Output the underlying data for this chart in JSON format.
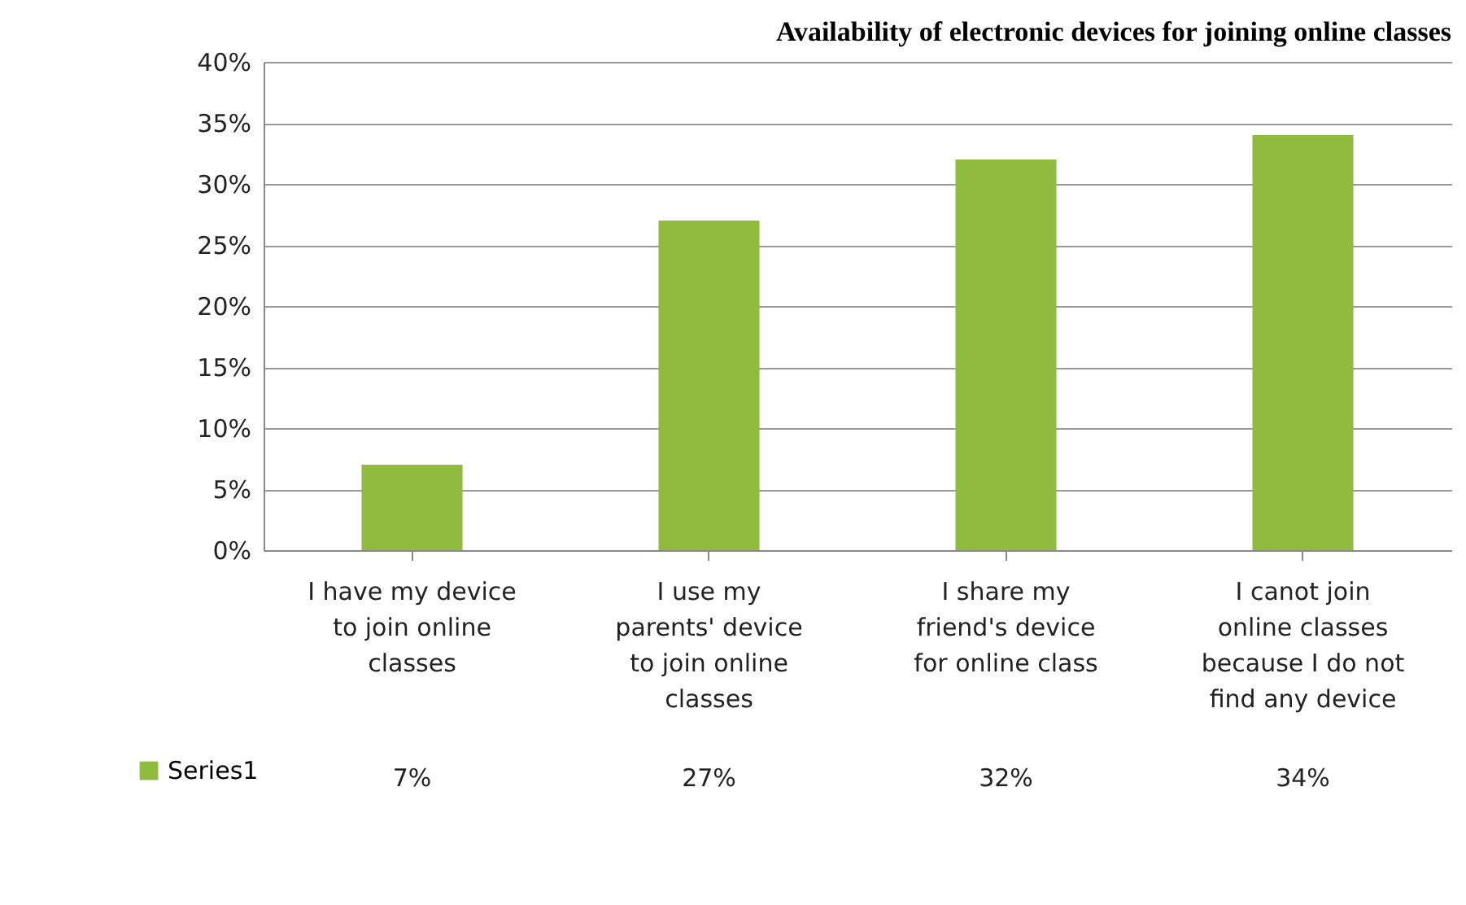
{
  "chart_data": {
    "type": "bar",
    "title": "Availability of electronic devices for joining online classes",
    "categories": [
      "I have my device to join online classes",
      "I use my parents' device to join online classes",
      "I share my friend's device for online class",
      "I canot join online classes because I do not find any device"
    ],
    "series": [
      {
        "name": "Series1",
        "color": "#8fbc3f",
        "values": [
          7,
          27,
          32,
          34
        ],
        "value_labels": [
          "7%",
          "27%",
          "32%",
          "34%"
        ]
      }
    ],
    "ylim": [
      0,
      40
    ],
    "yticks": [
      {
        "value": 0,
        "label": "0%"
      },
      {
        "value": 5,
        "label": "5%"
      },
      {
        "value": 10,
        "label": "10%"
      },
      {
        "value": 15,
        "label": "15%"
      },
      {
        "value": 20,
        "label": "20%"
      },
      {
        "value": 25,
        "label": "25%"
      },
      {
        "value": 30,
        "label": "30%"
      },
      {
        "value": 35,
        "label": "35%"
      },
      {
        "value": 40,
        "label": "40%"
      }
    ],
    "grid": "y",
    "legend": "bottom left"
  }
}
